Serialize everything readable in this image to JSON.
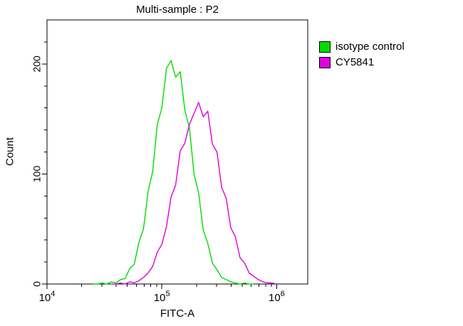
{
  "chart_data": {
    "type": "line",
    "subtype": "flow-cytometry-histogram",
    "title": "Multi-sample : P2",
    "xlabel": "FITC-A",
    "ylabel": "Count",
    "x_scale": "log",
    "xlim_log": [
      4,
      6.27
    ],
    "ylim": [
      0,
      240
    ],
    "x_ticks": [
      {
        "t": 4,
        "base": "10",
        "exp": "4"
      },
      {
        "t": 5,
        "base": "10",
        "exp": "5"
      },
      {
        "t": 6,
        "base": "10",
        "exp": "6"
      }
    ],
    "y_ticks": [
      0,
      100,
      200
    ],
    "y_minor_step": 20,
    "grid": false,
    "legend_position": "right-top",
    "axis_color": "#000000",
    "background_color": "#ffffff",
    "series": [
      {
        "name": "isotype control",
        "color": "#00dd00",
        "peak_count": 203,
        "points": [
          [
            4.4,
            0
          ],
          [
            4.44,
            0
          ],
          [
            4.48,
            1
          ],
          [
            4.52,
            0
          ],
          [
            4.56,
            2
          ],
          [
            4.6,
            1
          ],
          [
            4.64,
            4
          ],
          [
            4.68,
            5
          ],
          [
            4.72,
            14
          ],
          [
            4.76,
            18
          ],
          [
            4.8,
            38
          ],
          [
            4.84,
            50
          ],
          [
            4.88,
            84
          ],
          [
            4.92,
            102
          ],
          [
            4.96,
            145
          ],
          [
            5.0,
            160
          ],
          [
            5.04,
            196
          ],
          [
            5.08,
            203
          ],
          [
            5.12,
            188
          ],
          [
            5.16,
            193
          ],
          [
            5.2,
            158
          ],
          [
            5.24,
            142
          ],
          [
            5.28,
            100
          ],
          [
            5.32,
            83
          ],
          [
            5.36,
            49
          ],
          [
            5.4,
            37
          ],
          [
            5.44,
            19
          ],
          [
            5.48,
            13
          ],
          [
            5.52,
            6
          ],
          [
            5.56,
            4
          ],
          [
            5.6,
            2
          ],
          [
            5.64,
            1
          ],
          [
            5.68,
            0
          ],
          [
            5.72,
            1
          ],
          [
            5.76,
            0
          ],
          [
            5.8,
            0
          ]
        ]
      },
      {
        "name": "CY5841",
        "color": "#dd00dd",
        "peak_count": 165,
        "points": [
          [
            4.56,
            0
          ],
          [
            4.6,
            0
          ],
          [
            4.64,
            1
          ],
          [
            4.68,
            0
          ],
          [
            4.72,
            2
          ],
          [
            4.76,
            1
          ],
          [
            4.8,
            3
          ],
          [
            4.84,
            6
          ],
          [
            4.88,
            10
          ],
          [
            4.92,
            16
          ],
          [
            4.96,
            29
          ],
          [
            5.0,
            36
          ],
          [
            5.04,
            52
          ],
          [
            5.08,
            79
          ],
          [
            5.12,
            90
          ],
          [
            5.16,
            121
          ],
          [
            5.2,
            128
          ],
          [
            5.24,
            145
          ],
          [
            5.28,
            155
          ],
          [
            5.32,
            165
          ],
          [
            5.36,
            152
          ],
          [
            5.4,
            157
          ],
          [
            5.44,
            127
          ],
          [
            5.48,
            120
          ],
          [
            5.52,
            88
          ],
          [
            5.56,
            78
          ],
          [
            5.6,
            51
          ],
          [
            5.64,
            43
          ],
          [
            5.68,
            24
          ],
          [
            5.72,
            19
          ],
          [
            5.76,
            10
          ],
          [
            5.8,
            7
          ],
          [
            5.84,
            4
          ],
          [
            5.88,
            2
          ],
          [
            5.92,
            1
          ],
          [
            5.96,
            1
          ],
          [
            6.0,
            0
          ]
        ]
      }
    ]
  }
}
